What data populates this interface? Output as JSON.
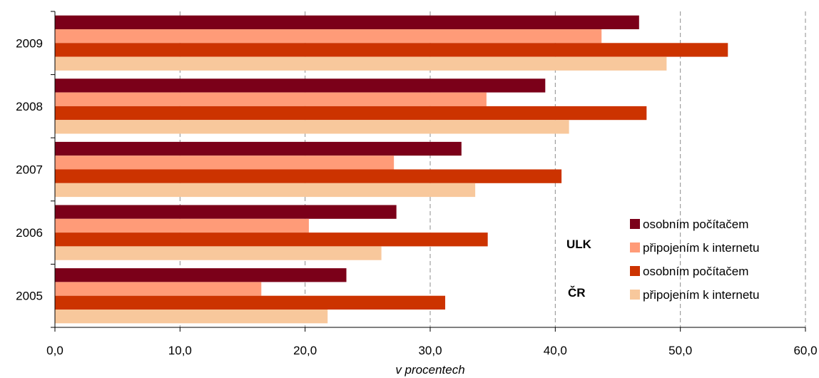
{
  "chart_data": {
    "type": "bar",
    "orientation": "horizontal",
    "categories": [
      "2009",
      "2008",
      "2007",
      "2006",
      "2005"
    ],
    "series": [
      {
        "name": "osobním počítačem",
        "color": "#7b0019",
        "values": [
          46.7,
          39.2,
          32.5,
          27.3,
          23.3
        ]
      },
      {
        "name": "připojením k internetu",
        "color": "#ff9b78",
        "values": [
          43.7,
          34.5,
          27.1,
          20.3,
          16.5
        ]
      },
      {
        "name": "osobním počítačem",
        "color": "#cc3300",
        "values": [
          53.8,
          47.3,
          40.5,
          34.6,
          31.2
        ]
      },
      {
        "name": "připojením k internetu",
        "color": "#f8c89c",
        "values": [
          48.9,
          41.1,
          33.6,
          26.1,
          21.8
        ]
      }
    ],
    "xlabel": "v procentech",
    "xlim": [
      0,
      60
    ],
    "xticks": [
      "0,0",
      "10,0",
      "20,0",
      "30,0",
      "40,0",
      "50,0",
      "60,0"
    ],
    "grid": "vertical dashed",
    "legend": {
      "placement": "bottom-right",
      "group_labels": [
        "ULK",
        "ČR"
      ]
    }
  }
}
